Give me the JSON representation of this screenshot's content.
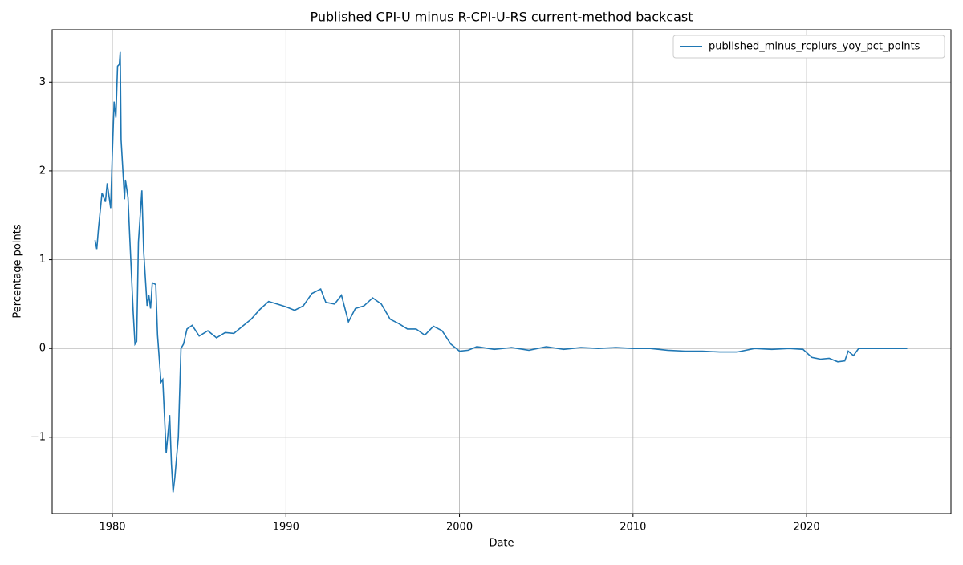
{
  "chart_data": {
    "type": "line",
    "title": "Published CPI-U minus R-CPI-U-RS current-method backcast",
    "xlabel": "Date",
    "ylabel": "Percentage points",
    "x": [
      1979.0,
      1979.1,
      1979.2,
      1979.4,
      1979.6,
      1979.7,
      1979.9,
      1980.0,
      1980.1,
      1980.2,
      1980.3,
      1980.4,
      1980.45,
      1980.5,
      1980.7,
      1980.75,
      1980.9,
      1981.0,
      1981.2,
      1981.3,
      1981.4,
      1981.5,
      1981.7,
      1981.8,
      1982.0,
      1982.1,
      1982.2,
      1982.3,
      1982.5,
      1982.6,
      1982.8,
      1982.9,
      1983.1,
      1983.3,
      1983.4,
      1983.5,
      1983.6,
      1983.8,
      1983.95,
      1984.1,
      1984.3,
      1984.6,
      1985.0,
      1985.5,
      1986.0,
      1986.5,
      1987.0,
      1987.5,
      1988.0,
      1988.5,
      1989.0,
      1989.5,
      1990.0,
      1990.5,
      1991.0,
      1991.5,
      1992.0,
      1992.3,
      1992.8,
      1993.2,
      1993.6,
      1994.0,
      1994.5,
      1995.0,
      1995.5,
      1996.0,
      1996.5,
      1997.0,
      1997.5,
      1998.0,
      1998.5,
      1999.0,
      1999.5,
      2000.0,
      2000.5,
      2001.0,
      2002.0,
      2003.0,
      2004.0,
      2005.0,
      2006.0,
      2007.0,
      2008.0,
      2009.0,
      2010.0,
      2011.0,
      2012.0,
      2013.0,
      2014.0,
      2015.0,
      2016.0,
      2017.0,
      2018.0,
      2019.0,
      2019.8,
      2020.3,
      2020.8,
      2021.3,
      2021.8,
      2022.2,
      2022.4,
      2022.7,
      2023.0,
      2023.5,
      2024.0,
      2025.0,
      2025.8
    ],
    "series": [
      {
        "name": "published_minus_rcpiurs_yoy_pct_points",
        "color": "#1f77b4",
        "values": [
          1.22,
          1.12,
          1.35,
          1.75,
          1.65,
          1.86,
          1.58,
          2.2,
          2.78,
          2.6,
          3.18,
          3.2,
          3.34,
          2.35,
          1.68,
          1.9,
          1.7,
          1.25,
          0.4,
          0.05,
          0.08,
          1.2,
          1.78,
          1.1,
          0.48,
          0.6,
          0.45,
          0.74,
          0.72,
          0.15,
          -0.38,
          -0.35,
          -1.18,
          -0.75,
          -1.3,
          -1.62,
          -1.45,
          -1.0,
          0.0,
          0.05,
          0.22,
          0.26,
          0.14,
          0.2,
          0.12,
          0.18,
          0.17,
          0.25,
          0.33,
          0.44,
          0.53,
          0.5,
          0.47,
          0.43,
          0.48,
          0.62,
          0.67,
          0.52,
          0.5,
          0.6,
          0.3,
          0.45,
          0.48,
          0.57,
          0.5,
          0.33,
          0.28,
          0.22,
          0.22,
          0.15,
          0.25,
          0.2,
          0.05,
          -0.03,
          -0.02,
          0.02,
          -0.01,
          0.01,
          -0.02,
          0.02,
          -0.01,
          0.01,
          0.0,
          0.01,
          0.0,
          0.0,
          -0.02,
          -0.03,
          -0.03,
          -0.04,
          -0.04,
          0.0,
          -0.01,
          0.0,
          -0.01,
          -0.1,
          -0.12,
          -0.11,
          -0.15,
          -0.14,
          -0.03,
          -0.08,
          0.0,
          0.0,
          0.0,
          0.0,
          0.0
        ]
      }
    ],
    "xlim": [
      1976.53,
      2028.32
    ],
    "xticks": [
      1980,
      1990,
      2000,
      2010,
      2020
    ],
    "ylim": [
      -1.86,
      3.59
    ],
    "yticks": [
      {
        "value": -1,
        "label": "−1"
      },
      0,
      1,
      2,
      3
    ],
    "grid": true,
    "legend": "upper right"
  }
}
